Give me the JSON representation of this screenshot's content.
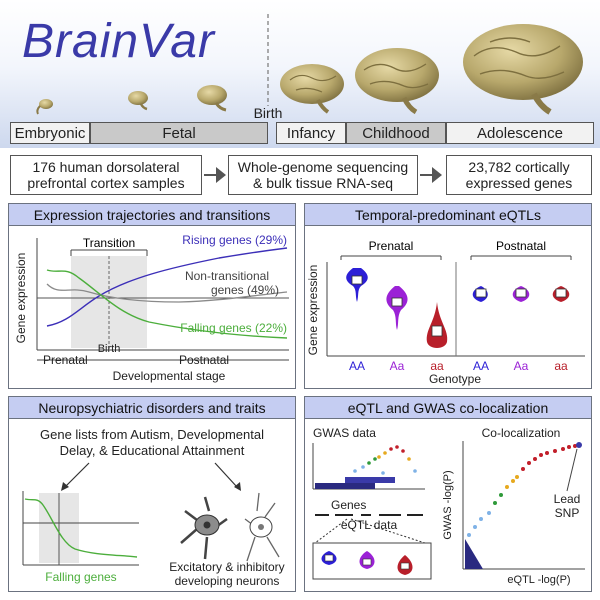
{
  "title": "BrainVar",
  "birth_label": "Birth",
  "stages": [
    "Embryonic",
    "Fetal",
    "Infancy",
    "Childhood",
    "Adolescence"
  ],
  "info_boxes": [
    "176 human dorsolateral prefrontal cortex samples",
    "Whole-genome sequencing & bulk tissue RNA-seq",
    "23,782 cortically expressed genes"
  ],
  "panel_trajectories": {
    "title": "Expression trajectories and transitions",
    "transition_label": "Transition",
    "rising_label": "Rising genes (29%)",
    "nontransitional_label_1": "Non-transitional",
    "nontransitional_label_2": "genes (49%)",
    "falling_label": "Falling genes (22%)",
    "birth_label": "Birth",
    "prenatal_label": "Prenatal",
    "postnatal_label": "Postnatal",
    "xlabel": "Developmental stage",
    "ylabel": "Gene expression",
    "colors": {
      "rising": "#3c2fb8",
      "nontransitional": "#8a8a8a",
      "falling": "#4cae3c"
    }
  },
  "panel_eqtl": {
    "title": "Temporal-predominant eQTLs",
    "prenatal_label": "Prenatal",
    "postnatal_label": "Postnatal",
    "ylabel": "Gene expression",
    "xlabel": "Genotype",
    "genotypes": [
      "AA",
      "Aa",
      "aa",
      "AA",
      "Aa",
      "aa"
    ],
    "colors": {
      "AA": "#2c1fd6",
      "Aa": "#9b22d6",
      "aa": "#b81f2a"
    }
  },
  "panel_disorders": {
    "title": "Neuropsychiatric disorders and traits",
    "line1": "Gene lists from Autism, Developmental",
    "line2": "Delay, & Educational Attainment",
    "falling_label": "Falling genes",
    "neurons_line1": "Excitatory & inhibitory",
    "neurons_line2": "developing neurons"
  },
  "panel_coloc": {
    "title": "eQTL and GWAS co-localization",
    "gwas_label": "GWAS data",
    "genes_label": "Genes",
    "eqtl_label": "eQTL data",
    "coloc_label": "Co-localization",
    "lead_label_1": "Lead",
    "lead_label_2": "SNP",
    "ylabel": "GWAS -log(P)",
    "xlabel": "eQTL -log(P)"
  }
}
